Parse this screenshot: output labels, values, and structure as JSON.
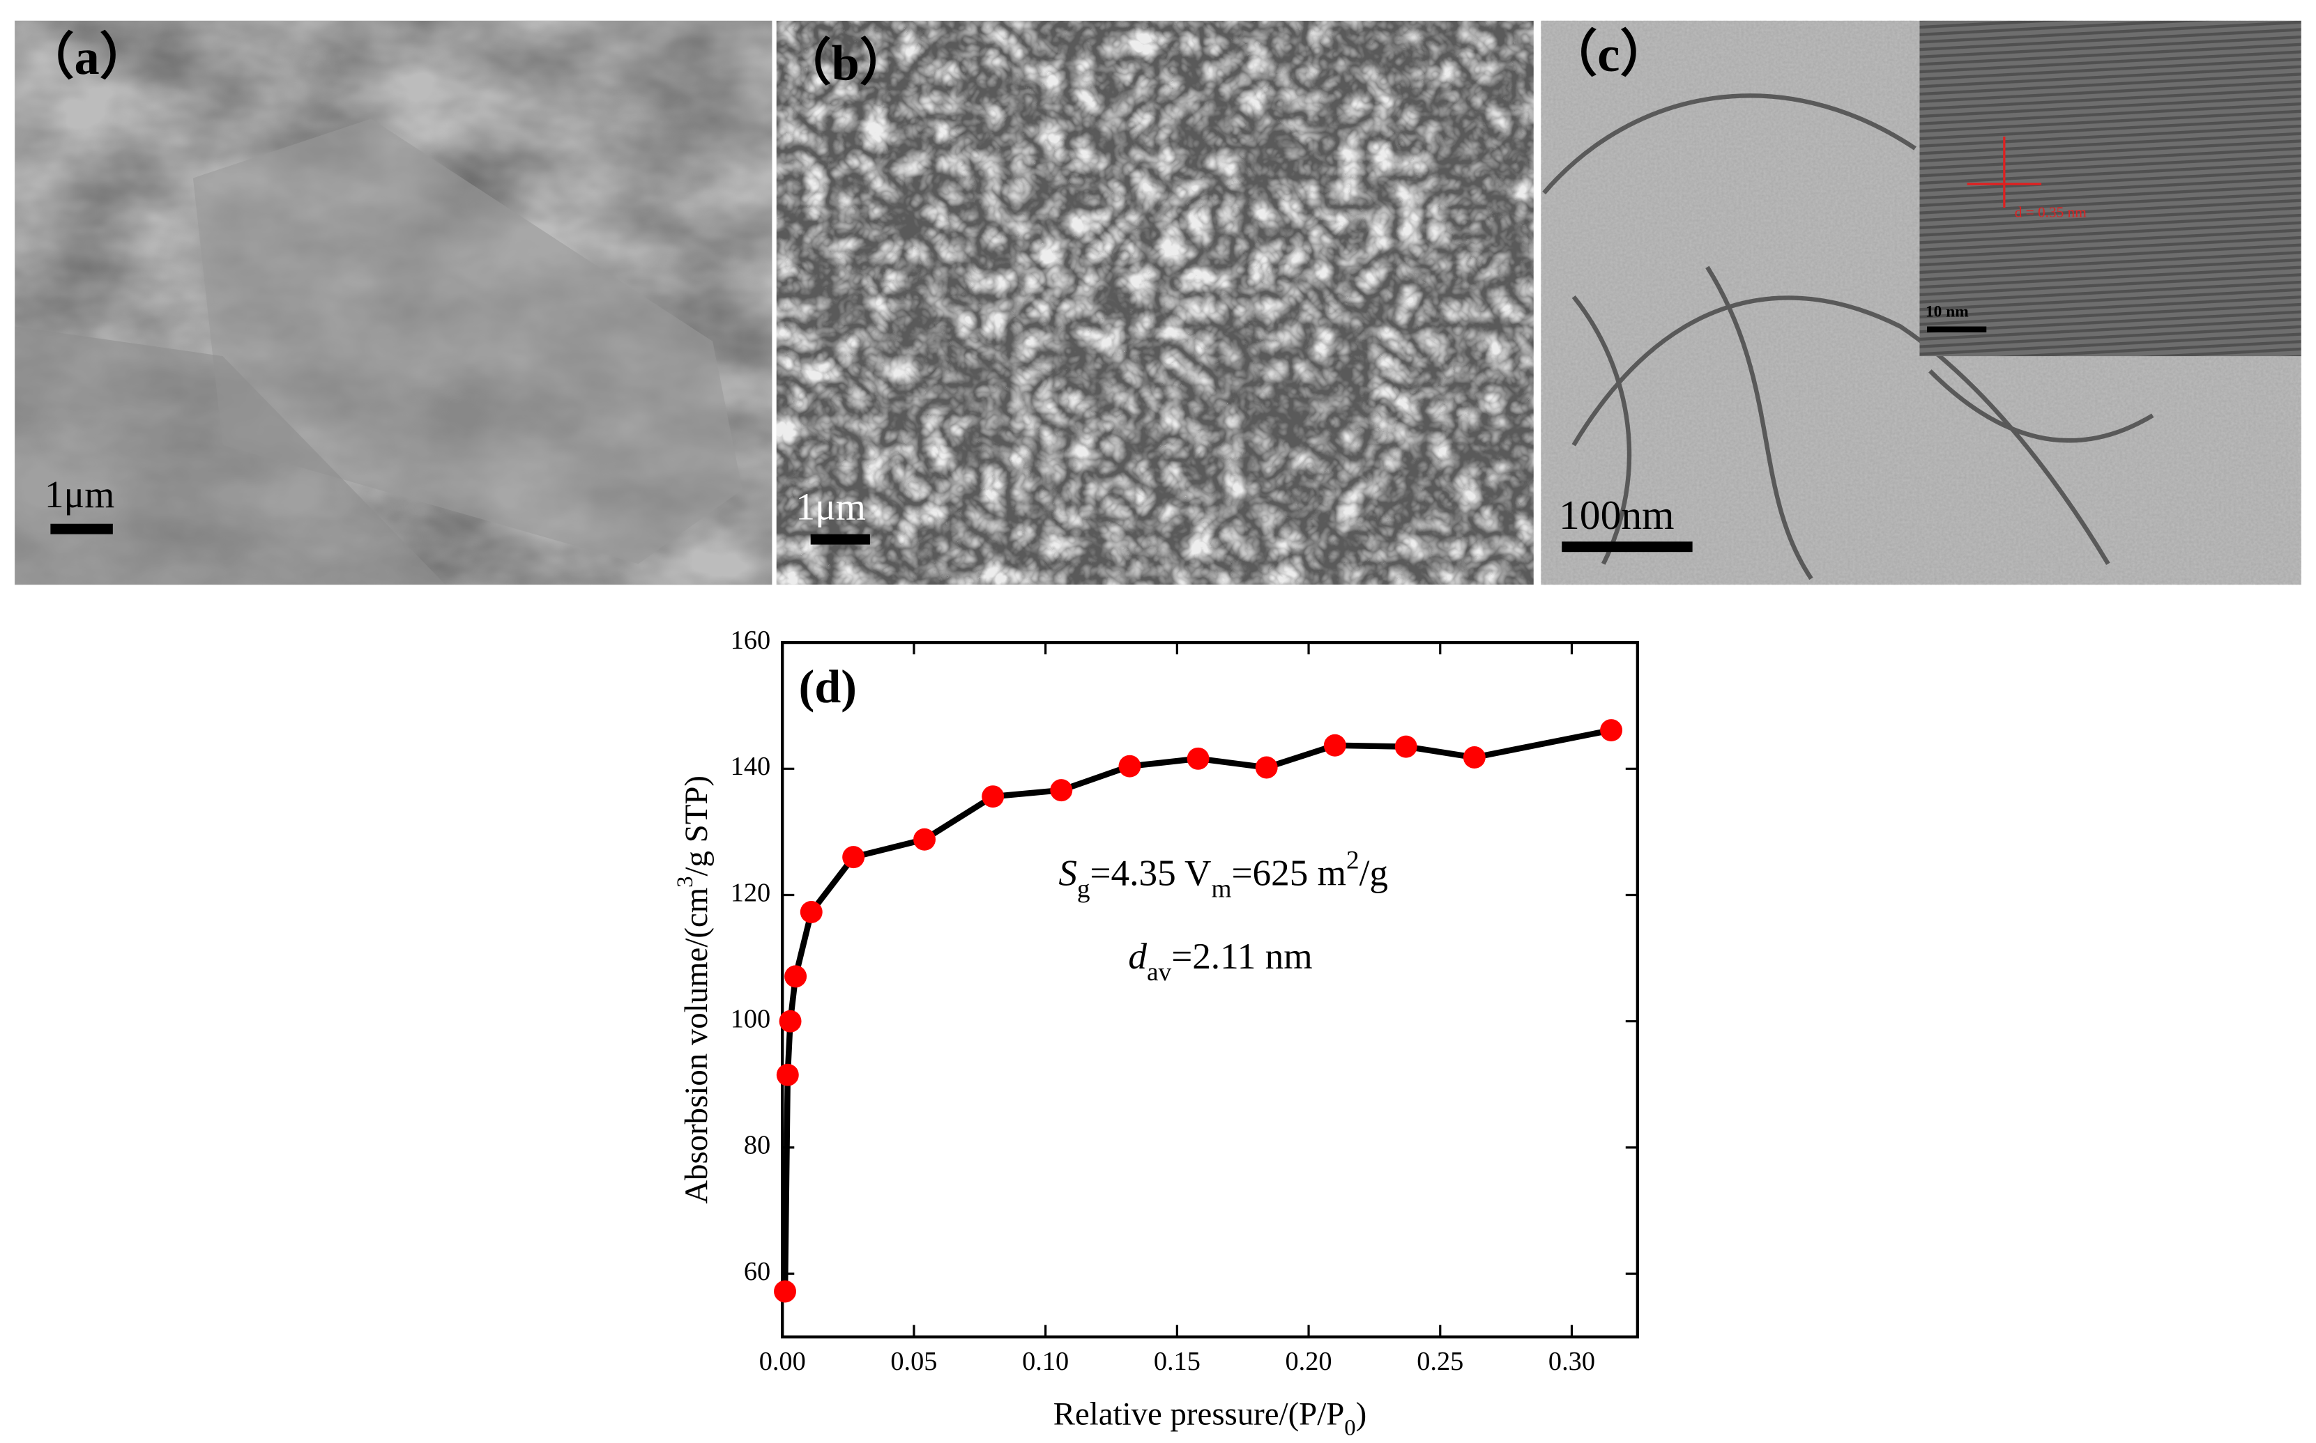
{
  "panels": [
    {
      "label": "（a）",
      "scale_bar": "1μm"
    },
    {
      "label": "（b）",
      "scale_bar": "1μm"
    },
    {
      "label": "（c）",
      "scale_bar": "100nm",
      "inset_scale_bar": "10 nm",
      "inset_annotation": "d = 0.35 nm"
    }
  ],
  "chart_data": {
    "type": "line",
    "panel_label": "(d)",
    "x_label": [
      "Relative pressure/(P/P",
      "0",
      ")"
    ],
    "y_label": [
      "Absorbsion volume/(cm",
      "3",
      "/g STP)"
    ],
    "annotations": [
      [
        "S",
        "g",
        "=4.35 V",
        "m",
        "=625 m",
        "2",
        "/g"
      ],
      [
        "d",
        "av",
        "=2.11 nm"
      ]
    ],
    "x": [
      0.001,
      0.002,
      0.003,
      0.005,
      0.011,
      0.027,
      0.054,
      0.08,
      0.106,
      0.132,
      0.158,
      0.184,
      0.21,
      0.237,
      0.263,
      0.315
    ],
    "series": [
      {
        "color": "#ff0000",
        "values": [
          57.2,
          91.5,
          100,
          107.1,
          117.3,
          126,
          128.8,
          135.6,
          136.6,
          140.4,
          141.6,
          140.2,
          143.7,
          143.5,
          141.8,
          146.1
        ]
      }
    ],
    "xlim": [
      0,
      0.325
    ],
    "ylim": [
      50,
      160
    ],
    "xticks": [
      {
        "value": 0,
        "label": "0.00"
      },
      {
        "value": 0.05,
        "label": "0.05"
      },
      {
        "value": 0.1,
        "label": "0.10"
      },
      {
        "value": 0.15,
        "label": "0.15"
      },
      {
        "value": 0.2,
        "label": "0.20"
      },
      {
        "value": 0.25,
        "label": "0.25"
      },
      {
        "value": 0.3,
        "label": "0.30"
      }
    ],
    "yticks": [
      60,
      80,
      100,
      120,
      140,
      160
    ]
  }
}
